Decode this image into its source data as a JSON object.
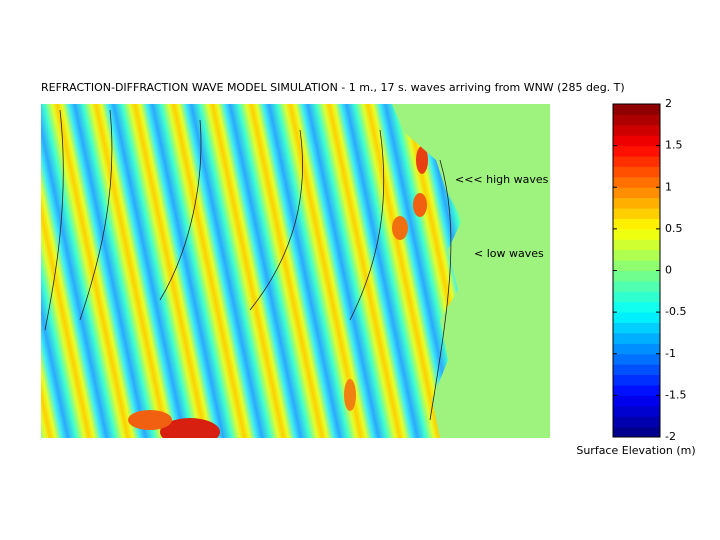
{
  "chart_data": {
    "type": "heatmap",
    "title": "REFRACTION-DIFFRACTION WAVE MODEL SIMULATION -  1 m., 17 s. waves arriving from  WNW (285 deg. T)",
    "annotations": [
      "<<< high waves",
      "< low waves"
    ],
    "colorbar": {
      "label": "Surface Elevation (m)",
      "colormap": "jet",
      "clim": [
        -2,
        2
      ],
      "ticks": [
        -2,
        -1.5,
        -1,
        -0.5,
        0,
        0.5,
        1,
        1.5,
        2
      ]
    }
  }
}
